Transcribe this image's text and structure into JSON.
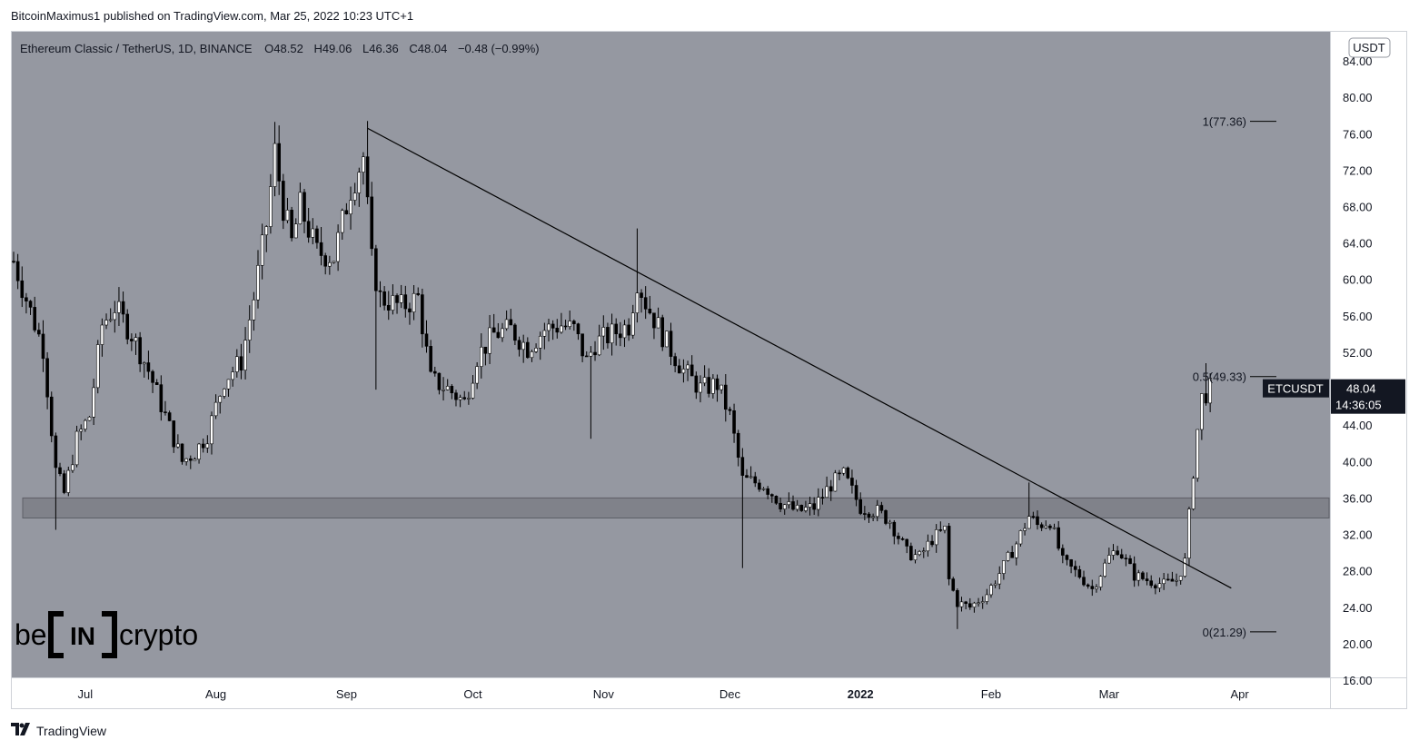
{
  "header": {
    "publisher": "BitcoinMaximus1 published on TradingView.com, Mar 25, 2022 10:23 UTC+1"
  },
  "footer": {
    "brand": "TradingView"
  },
  "logo": {
    "text_left": "be",
    "text_mid": "IN",
    "text_right": "crypto"
  },
  "colors": {
    "plot_bg": "#9598a1",
    "candle": "#000000",
    "zone": "#6f7179",
    "trend": "#000000",
    "badge_bg": "#131722"
  },
  "chart_data": {
    "type": "candlestick",
    "title": "Ethereum Classic / TetherUS, 1D, BINANCE",
    "ohlc_legend": {
      "o_label": "O",
      "o": "48.52",
      "h_label": "H",
      "h": "49.06",
      "l_label": "L",
      "l": "46.36",
      "c_label": "C",
      "c": "48.04",
      "change": "−0.48 (−0.99%)"
    },
    "currency": "USDT",
    "y_ticks": [
      "84.00",
      "80.00",
      "76.00",
      "72.00",
      "68.00",
      "64.00",
      "60.00",
      "56.00",
      "52.00",
      "48.00",
      "44.00",
      "40.00",
      "36.00",
      "32.00",
      "28.00",
      "24.00",
      "20.00",
      "16.00"
    ],
    "ylim": [
      15.2,
      86.4
    ],
    "x_ticks": [
      {
        "label": "Jul",
        "date": "2021-07-01",
        "bold": false
      },
      {
        "label": "Aug",
        "date": "2021-08-01",
        "bold": false
      },
      {
        "label": "Sep",
        "date": "2021-09-01",
        "bold": false
      },
      {
        "label": "Oct",
        "date": "2021-10-01",
        "bold": false
      },
      {
        "label": "Nov",
        "date": "2021-11-01",
        "bold": false
      },
      {
        "label": "Dec",
        "date": "2021-12-01",
        "bold": false
      },
      {
        "label": "2022",
        "date": "2022-01-01",
        "bold": true
      },
      {
        "label": "Feb",
        "date": "2022-02-01",
        "bold": false
      },
      {
        "label": "Mar",
        "date": "2022-03-01",
        "bold": false
      },
      {
        "label": "Apr",
        "date": "2022-04-01",
        "bold": false
      }
    ],
    "xlim": [
      "2021-06-14",
      "2022-04-22"
    ],
    "price_path": [
      [
        "2021-06-14",
        62.0
      ],
      [
        "2021-06-18",
        56.5
      ],
      [
        "2021-06-21",
        52.5
      ],
      [
        "2021-06-24",
        39.0
      ],
      [
        "2021-06-26",
        36.5
      ],
      [
        "2021-06-29",
        42.5
      ],
      [
        "2021-07-02",
        45.0
      ],
      [
        "2021-07-05",
        55.0
      ],
      [
        "2021-07-08",
        57.0
      ],
      [
        "2021-07-12",
        54.0
      ],
      [
        "2021-07-16",
        50.0
      ],
      [
        "2021-07-20",
        45.0
      ],
      [
        "2021-07-24",
        40.0
      ],
      [
        "2021-07-27",
        41.0
      ],
      [
        "2021-07-30",
        43.0
      ],
      [
        "2021-08-03",
        49.0
      ],
      [
        "2021-08-07",
        51.0
      ],
      [
        "2021-08-10",
        58.0
      ],
      [
        "2021-08-13",
        66.0
      ],
      [
        "2021-08-15",
        74.0
      ],
      [
        "2021-08-17",
        68.0
      ],
      [
        "2021-08-19",
        64.0
      ],
      [
        "2021-08-21",
        68.0
      ],
      [
        "2021-08-25",
        63.0
      ],
      [
        "2021-08-29",
        62.5
      ],
      [
        "2021-09-02",
        70.0
      ],
      [
        "2021-09-05",
        73.5
      ],
      [
        "2021-09-07",
        62.0
      ],
      [
        "2021-09-09",
        58.0
      ],
      [
        "2021-09-14",
        57.0
      ],
      [
        "2021-09-18",
        58.0
      ],
      [
        "2021-09-21",
        49.0
      ],
      [
        "2021-09-25",
        48.0
      ],
      [
        "2021-09-29",
        46.5
      ],
      [
        "2021-10-02",
        51.5
      ],
      [
        "2021-10-06",
        54.0
      ],
      [
        "2021-10-10",
        54.5
      ],
      [
        "2021-10-14",
        52.5
      ],
      [
        "2021-10-18",
        54.5
      ],
      [
        "2021-10-22",
        55.0
      ],
      [
        "2021-10-25",
        54.5
      ],
      [
        "2021-10-28",
        51.0
      ],
      [
        "2021-10-30",
        53.0
      ],
      [
        "2021-11-03",
        54.0
      ],
      [
        "2021-11-07",
        55.0
      ],
      [
        "2021-11-09",
        60.0
      ],
      [
        "2021-11-11",
        57.5
      ],
      [
        "2021-11-16",
        53.0
      ],
      [
        "2021-11-20",
        50.0
      ],
      [
        "2021-11-24",
        48.0
      ],
      [
        "2021-11-28",
        48.5
      ],
      [
        "2021-12-01",
        45.0
      ],
      [
        "2021-12-04",
        38.0
      ],
      [
        "2021-12-09",
        37.5
      ],
      [
        "2021-12-13",
        35.5
      ],
      [
        "2021-12-17",
        34.5
      ],
      [
        "2021-12-21",
        35.0
      ],
      [
        "2021-12-25",
        37.5
      ],
      [
        "2021-12-28",
        38.5
      ],
      [
        "2022-01-01",
        35.0
      ],
      [
        "2022-01-05",
        34.5
      ],
      [
        "2022-01-08",
        33.5
      ],
      [
        "2022-01-12",
        30.0
      ],
      [
        "2022-01-15",
        29.5
      ],
      [
        "2022-01-18",
        31.5
      ],
      [
        "2022-01-21",
        32.5
      ],
      [
        "2022-01-22",
        27.0
      ],
      [
        "2022-01-24",
        24.5
      ],
      [
        "2022-01-27",
        24.0
      ],
      [
        "2022-01-31",
        25.5
      ],
      [
        "2022-02-04",
        28.5
      ],
      [
        "2022-02-07",
        31.0
      ],
      [
        "2022-02-10",
        34.0
      ],
      [
        "2022-02-12",
        33.0
      ],
      [
        "2022-02-15",
        33.5
      ],
      [
        "2022-02-18",
        29.0
      ],
      [
        "2022-02-22",
        27.5
      ],
      [
        "2022-02-25",
        26.0
      ],
      [
        "2022-03-01",
        29.5
      ],
      [
        "2022-03-03",
        30.5
      ],
      [
        "2022-03-07",
        27.5
      ],
      [
        "2022-03-10",
        27.0
      ],
      [
        "2022-03-14",
        26.5
      ],
      [
        "2022-03-17",
        27.0
      ],
      [
        "2022-03-19",
        29.0
      ],
      [
        "2022-03-20",
        34.0
      ],
      [
        "2022-03-21",
        39.0
      ],
      [
        "2022-03-22",
        43.5
      ],
      [
        "2022-03-23",
        47.0
      ],
      [
        "2022-03-25",
        48.0
      ]
    ],
    "wicks": [
      {
        "date": "2021-06-24",
        "low": 32.5
      },
      {
        "date": "2021-08-15",
        "high": 77.3
      },
      {
        "date": "2021-09-06",
        "high": 77.4
      },
      {
        "date": "2021-09-08",
        "low": 47.9
      },
      {
        "date": "2021-11-09",
        "high": 65.6
      },
      {
        "date": "2021-10-29",
        "low": 42.5
      },
      {
        "date": "2021-12-04",
        "low": 28.3
      },
      {
        "date": "2022-01-24",
        "low": 21.6
      },
      {
        "date": "2022-02-10",
        "high": 37.7
      },
      {
        "date": "2022-03-24",
        "high": 50.8
      }
    ],
    "support_zone": {
      "low": 33.8,
      "high": 36.0
    },
    "trendline": {
      "start": [
        "2021-09-06",
        76.6
      ],
      "end": [
        "2022-03-30",
        26.1
      ]
    },
    "fib_levels": [
      {
        "label": "1(77.36)",
        "value": 77.36
      },
      {
        "label": "0.5(49.33)",
        "value": 49.33
      },
      {
        "label": "0(21.29)",
        "value": 21.29
      }
    ],
    "last_price": {
      "symbol": "ETCUSDT",
      "price": "48.04",
      "countdown": "14:36:05",
      "value": 48.04
    }
  }
}
